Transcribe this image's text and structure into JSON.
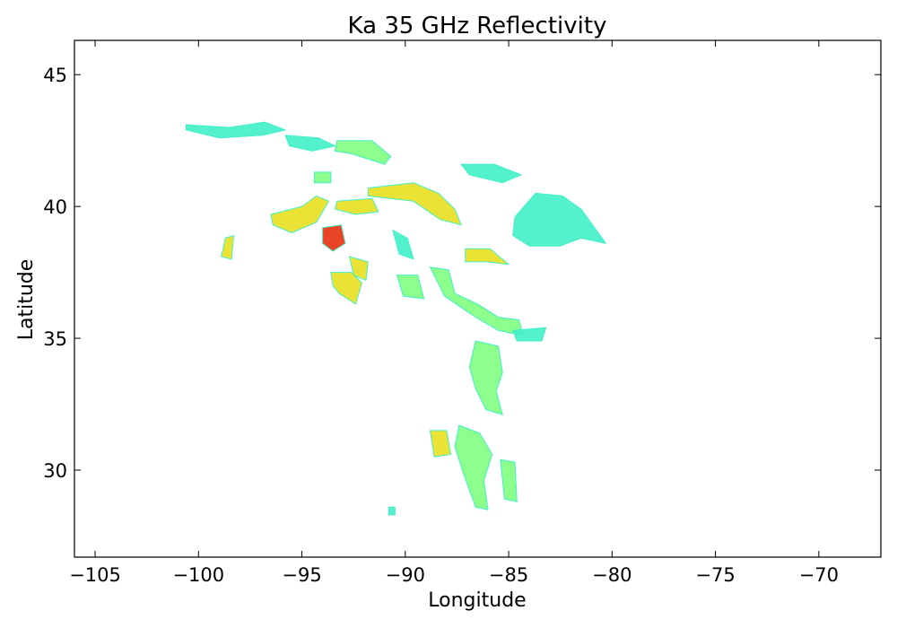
{
  "chart_data": {
    "type": "heatmap",
    "title": "Ka 35 GHz Reflectivity",
    "xlabel": "Longitude",
    "ylabel": "Latitude",
    "xlim": [
      -106,
      -67
    ],
    "ylim": [
      26.7,
      46.3
    ],
    "xticks": [
      -105,
      -100,
      -95,
      -90,
      -85,
      -80,
      -75,
      -70
    ],
    "yticks": [
      30,
      35,
      40,
      45
    ],
    "xtick_labels": [
      "−105",
      "−100",
      "−95",
      "−90",
      "−85",
      "−80",
      "−75",
      "−70"
    ],
    "ytick_labels": [
      "30",
      "35",
      "40",
      "45"
    ],
    "grid": false,
    "legend": "none",
    "colormap": "jet",
    "colors": {
      "low": "#40f0c8",
      "mid": "#7fff7f",
      "high": "#e8e020",
      "peak": "#e83010",
      "axes": "#000000",
      "background": "#ffffff"
    },
    "regions": [
      {
        "name": "northern-band-west",
        "polygon": [
          [
            -100.6,
            43.1
          ],
          [
            -98.5,
            43.0
          ],
          [
            -96.8,
            43.2
          ],
          [
            -95.8,
            42.9
          ],
          [
            -96.9,
            42.7
          ],
          [
            -99.0,
            42.6
          ],
          [
            -100.6,
            42.9
          ]
        ],
        "level": "low"
      },
      {
        "name": "northern-band-central",
        "polygon": [
          [
            -95.8,
            42.7
          ],
          [
            -94.2,
            42.6
          ],
          [
            -93.4,
            42.3
          ],
          [
            -94.5,
            42.1
          ],
          [
            -95.6,
            42.3
          ]
        ],
        "level": "low"
      },
      {
        "name": "northern-band-east",
        "polygon": [
          [
            -93.3,
            42.5
          ],
          [
            -91.6,
            42.5
          ],
          [
            -90.7,
            41.9
          ],
          [
            -91.0,
            41.6
          ],
          [
            -92.6,
            42.0
          ],
          [
            -93.4,
            42.1
          ]
        ],
        "level": "mid"
      },
      {
        "name": "iowa-illinois-band",
        "polygon": [
          [
            -91.8,
            40.7
          ],
          [
            -89.6,
            40.9
          ],
          [
            -88.4,
            40.5
          ],
          [
            -87.6,
            39.9
          ],
          [
            -87.3,
            39.3
          ],
          [
            -88.3,
            39.5
          ],
          [
            -89.6,
            40.2
          ],
          [
            -91.8,
            40.4
          ]
        ],
        "level": "high"
      },
      {
        "name": "ohio-upper",
        "polygon": [
          [
            -87.3,
            41.6
          ],
          [
            -85.7,
            41.6
          ],
          [
            -84.4,
            41.2
          ],
          [
            -85.3,
            40.9
          ],
          [
            -86.9,
            41.2
          ]
        ],
        "level": "low"
      },
      {
        "name": "appalachian-mass",
        "polygon": [
          [
            -84.7,
            39.6
          ],
          [
            -83.7,
            40.5
          ],
          [
            -82.4,
            40.4
          ],
          [
            -81.5,
            39.9
          ],
          [
            -80.3,
            38.6
          ],
          [
            -81.5,
            38.8
          ],
          [
            -82.5,
            38.5
          ],
          [
            -84.0,
            38.5
          ],
          [
            -84.8,
            38.9
          ]
        ],
        "level": "low"
      },
      {
        "name": "kansas-cluster",
        "polygon": [
          [
            -96.5,
            39.7
          ],
          [
            -95.0,
            40.0
          ],
          [
            -94.3,
            40.4
          ],
          [
            -93.7,
            40.2
          ],
          [
            -94.3,
            39.4
          ],
          [
            -95.5,
            39.0
          ],
          [
            -96.4,
            39.3
          ]
        ],
        "level": "high"
      },
      {
        "name": "kansas-east",
        "polygon": [
          [
            -93.3,
            40.2
          ],
          [
            -91.6,
            40.3
          ],
          [
            -91.3,
            39.8
          ],
          [
            -92.4,
            39.7
          ],
          [
            -93.4,
            39.9
          ]
        ],
        "level": "high"
      },
      {
        "name": "missouri-core",
        "polygon": [
          [
            -94.0,
            39.2
          ],
          [
            -93.1,
            39.3
          ],
          [
            -92.9,
            38.6
          ],
          [
            -93.5,
            38.3
          ],
          [
            -94.0,
            38.6
          ]
        ],
        "level": "peak"
      },
      {
        "name": "ozark-cells",
        "polygon": [
          [
            -93.6,
            37.5
          ],
          [
            -92.6,
            37.5
          ],
          [
            -92.1,
            37.1
          ],
          [
            -92.4,
            36.3
          ],
          [
            -93.2,
            36.7
          ],
          [
            -93.5,
            37.0
          ]
        ],
        "level": "high"
      },
      {
        "name": "ozark-east",
        "polygon": [
          [
            -92.7,
            38.1
          ],
          [
            -91.8,
            37.9
          ],
          [
            -91.9,
            37.2
          ],
          [
            -92.5,
            37.4
          ]
        ],
        "level": "high"
      },
      {
        "name": "western-isolated",
        "polygon": [
          [
            -98.7,
            38.8
          ],
          [
            -98.3,
            38.9
          ],
          [
            -98.4,
            38.0
          ],
          [
            -98.9,
            38.1
          ]
        ],
        "level": "high"
      },
      {
        "name": "illinois-south",
        "polygon": [
          [
            -90.6,
            39.1
          ],
          [
            -89.9,
            38.8
          ],
          [
            -89.6,
            38.0
          ],
          [
            -90.3,
            38.2
          ]
        ],
        "level": "low"
      },
      {
        "name": "kentucky-band",
        "polygon": [
          [
            -88.8,
            37.7
          ],
          [
            -87.9,
            37.6
          ],
          [
            -87.6,
            36.7
          ],
          [
            -86.5,
            36.3
          ],
          [
            -85.5,
            35.8
          ],
          [
            -84.5,
            35.7
          ],
          [
            -84.3,
            35.1
          ],
          [
            -85.5,
            35.3
          ],
          [
            -86.6,
            35.8
          ],
          [
            -88.1,
            36.6
          ]
        ],
        "level": "mid"
      },
      {
        "name": "ohio-middle",
        "polygon": [
          [
            -87.1,
            38.4
          ],
          [
            -85.9,
            38.4
          ],
          [
            -85.0,
            37.8
          ],
          [
            -86.0,
            37.9
          ],
          [
            -87.1,
            37.9
          ]
        ],
        "level": "high"
      },
      {
        "name": "southern-line-north",
        "polygon": [
          [
            -86.6,
            34.9
          ],
          [
            -85.5,
            34.7
          ],
          [
            -85.3,
            33.7
          ],
          [
            -85.6,
            33.0
          ],
          [
            -85.3,
            32.1
          ],
          [
            -86.1,
            32.3
          ],
          [
            -86.6,
            33.1
          ],
          [
            -86.9,
            33.9
          ]
        ],
        "level": "mid"
      },
      {
        "name": "southern-line-south",
        "polygon": [
          [
            -87.4,
            31.7
          ],
          [
            -86.4,
            31.4
          ],
          [
            -85.8,
            30.6
          ],
          [
            -86.2,
            29.6
          ],
          [
            -86.0,
            28.5
          ],
          [
            -86.6,
            28.6
          ],
          [
            -87.2,
            29.9
          ],
          [
            -87.6,
            30.9
          ]
        ],
        "level": "mid"
      },
      {
        "name": "gulf-cells-west",
        "polygon": [
          [
            -88.8,
            31.5
          ],
          [
            -88.0,
            31.5
          ],
          [
            -87.8,
            30.6
          ],
          [
            -88.6,
            30.5
          ]
        ],
        "level": "high"
      },
      {
        "name": "gulf-cells-east",
        "polygon": [
          [
            -85.4,
            30.4
          ],
          [
            -84.7,
            30.3
          ],
          [
            -84.6,
            28.8
          ],
          [
            -85.2,
            28.9
          ]
        ],
        "level": "mid"
      },
      {
        "name": "carolina-spur",
        "polygon": [
          [
            -84.8,
            35.3
          ],
          [
            -83.2,
            35.4
          ],
          [
            -83.4,
            34.9
          ],
          [
            -84.6,
            34.9
          ]
        ],
        "level": "low"
      },
      {
        "name": "arkansas-cells",
        "polygon": [
          [
            -90.4,
            37.4
          ],
          [
            -89.4,
            37.4
          ],
          [
            -89.1,
            36.5
          ],
          [
            -90.1,
            36.6
          ]
        ],
        "level": "mid"
      },
      {
        "name": "tiny-isolated-south",
        "polygon": [
          [
            -90.8,
            28.6
          ],
          [
            -90.5,
            28.6
          ],
          [
            -90.5,
            28.3
          ],
          [
            -90.8,
            28.3
          ]
        ],
        "level": "low"
      },
      {
        "name": "northern-fragment",
        "polygon": [
          [
            -94.4,
            41.3
          ],
          [
            -93.6,
            41.3
          ],
          [
            -93.6,
            40.9
          ],
          [
            -94.4,
            40.9
          ]
        ],
        "level": "mid"
      }
    ]
  }
}
